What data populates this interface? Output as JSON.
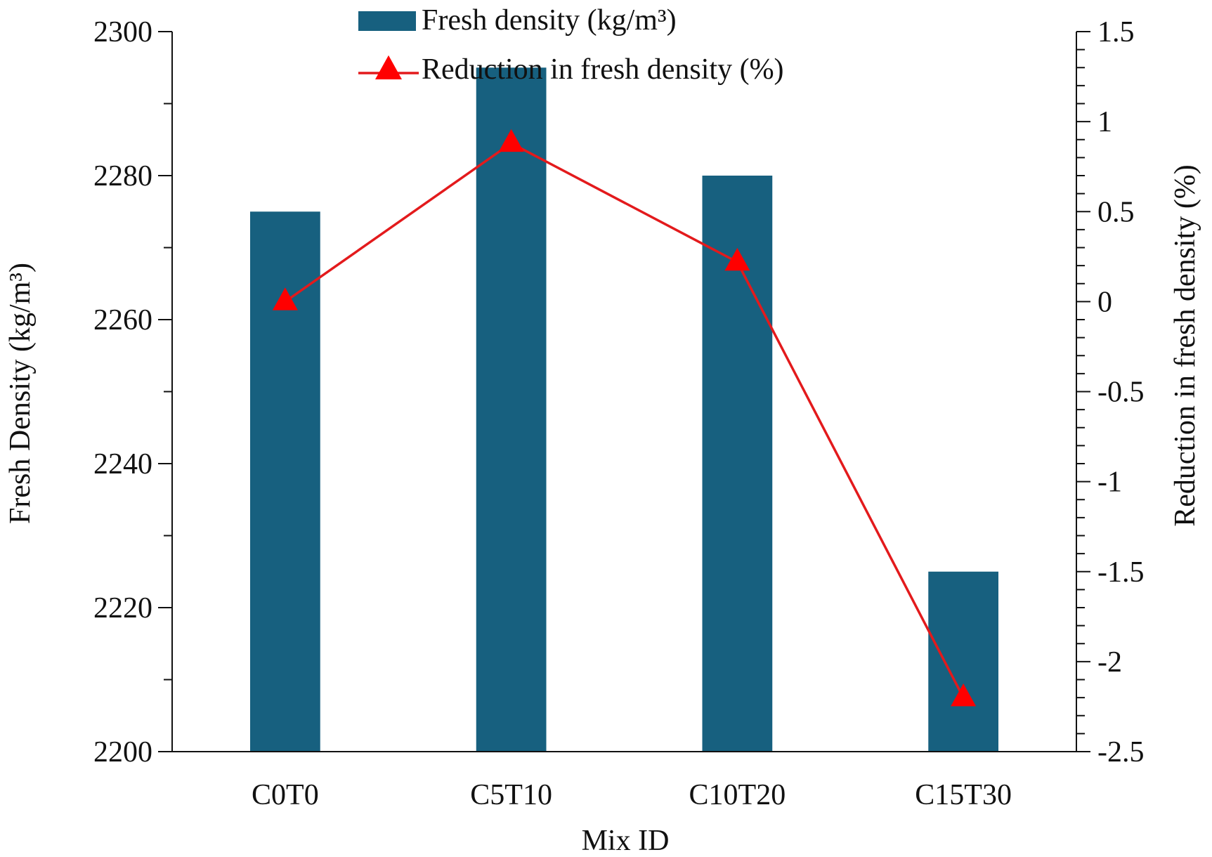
{
  "chart_data": {
    "type": "bar",
    "categories": [
      "C0T0",
      "C5T10",
      "C10T20",
      "C15T30"
    ],
    "series": [
      {
        "name": "Fresh density (kg/m³)",
        "type": "bar",
        "axis": "left",
        "values": [
          2275,
          2295,
          2280,
          2225
        ],
        "color": "#17607f"
      },
      {
        "name": "Reduction in fresh density (%)",
        "type": "line",
        "axis": "right",
        "marker": "triangle",
        "values": [
          0,
          0.88,
          0.22,
          -2.2
        ],
        "color": "#ff0000",
        "line_color": "#e31a1c"
      }
    ],
    "xlabel": "Mix ID",
    "ylabel": "Fresh Density (kg/m³)",
    "y2label": "Reduction in fresh density (%)",
    "ylim": [
      2200,
      2300
    ],
    "y2lim": [
      -2.5,
      1.5
    ],
    "yticks": [
      2200,
      2220,
      2240,
      2260,
      2280,
      2300
    ],
    "yticks_labels": [
      "2200",
      "2220",
      "2240",
      "2260",
      "2280",
      "2300"
    ],
    "y2ticks": [
      -2.5,
      -2,
      -1.5,
      -1,
      -0.5,
      0,
      0.5,
      1,
      1.5
    ],
    "y2ticks_labels": [
      "-2.5",
      "-2",
      "-1.5",
      "-1",
      "-0.5",
      "0",
      "0.5",
      "1",
      "1.5"
    ],
    "grid": false,
    "legend_position": "top-center"
  }
}
